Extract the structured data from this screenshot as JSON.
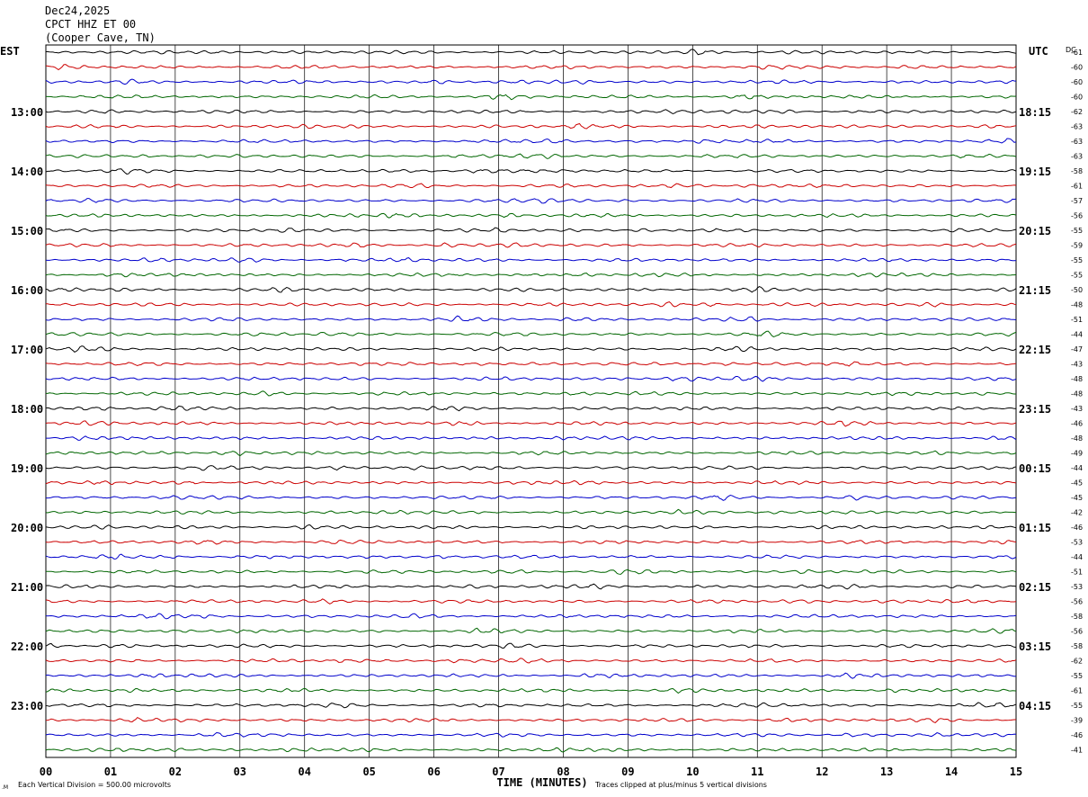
{
  "header": {
    "date": "Dec24,2025",
    "station": "CPCT HHZ ET 00",
    "location": "(Cooper Cave, TN)"
  },
  "labels": {
    "left_tz": "EST",
    "right_tz": "UTC",
    "dc": "DC",
    "xlabel": "TIME (MINUTES)",
    "scale_note": "Each Vertical Division =  500.00 microvolts",
    "clip_note": "Traces clipped at plus/minus 5 vertical divisions",
    "corner_mark": ".M"
  },
  "colors": {
    "trace_cycle": [
      "#000000",
      "#cc0000",
      "#0000cc",
      "#006600"
    ],
    "grid": "#000000",
    "text": "#000000"
  },
  "chart_data": {
    "type": "line",
    "title": "Dec24,2025 CPCT HHZ ET 00 (Cooper Cave, TN)",
    "xlabel": "TIME (MINUTES)",
    "x_ticks": [
      "00",
      "01",
      "02",
      "03",
      "04",
      "05",
      "06",
      "07",
      "08",
      "09",
      "10",
      "11",
      "12",
      "13",
      "14",
      "15"
    ],
    "xlim": [
      0,
      15
    ],
    "rows": 48,
    "minutes_per_row": 15,
    "left_hour_labels": [
      "13:00",
      "14:00",
      "15:00",
      "16:00",
      "17:00",
      "18:00",
      "19:00",
      "20:00",
      "21:00",
      "22:00",
      "23:00"
    ],
    "right_hour_labels": [
      "18:15",
      "19:15",
      "20:15",
      "21:15",
      "22:15",
      "23:15",
      "00:15",
      "01:15",
      "02:15",
      "03:15",
      "04:15"
    ],
    "dc_offsets": [
      -61,
      -60,
      -60,
      -60,
      -62,
      -63,
      -63,
      -63,
      -58,
      -61,
      -57,
      -56,
      -55,
      -59,
      -55,
      -55,
      -50,
      -48,
      -51,
      -44,
      -47,
      -43,
      -48,
      -48,
      -43,
      -46,
      -48,
      -49,
      -44,
      -45,
      -45,
      -42,
      -46,
      -53,
      -44,
      -51,
      -53,
      -56,
      -58,
      -56,
      -58,
      -62,
      -55,
      -61,
      -55,
      -39,
      -46,
      -41
    ],
    "grid": true
  }
}
